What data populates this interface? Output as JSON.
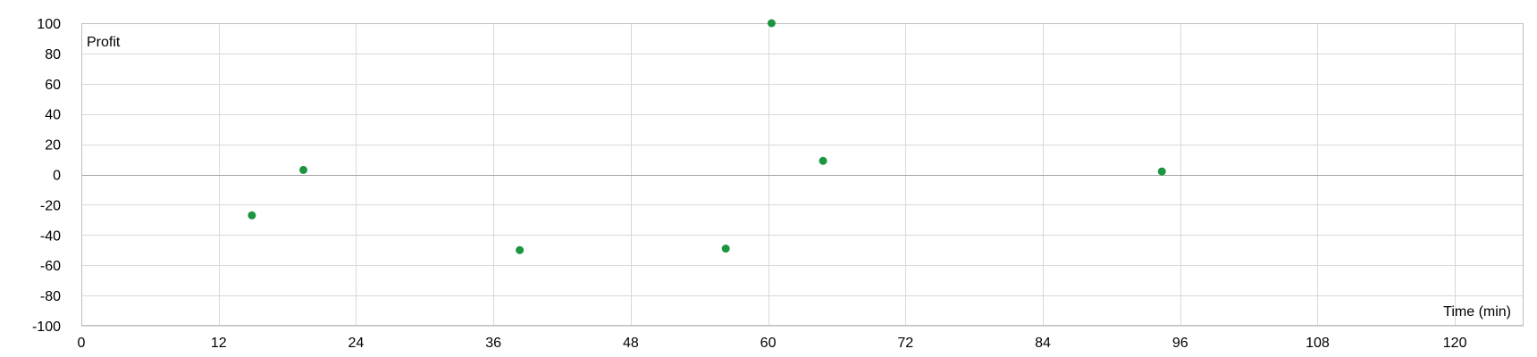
{
  "chart_data": {
    "type": "scatter",
    "title": "",
    "xlabel": "Time (min)",
    "ylabel": "Profit",
    "xlim": [
      0,
      126
    ],
    "ylim": [
      -100,
      100
    ],
    "x_ticks": [
      0,
      12,
      24,
      36,
      48,
      60,
      72,
      84,
      96,
      108,
      120
    ],
    "y_ticks": [
      100,
      80,
      60,
      40,
      20,
      0,
      -20,
      -40,
      -60,
      -80,
      -100
    ],
    "grid": true,
    "legend": "none",
    "marker_color": "#1a9641",
    "series": [
      {
        "points": [
          {
            "x": 14.9,
            "y": -27
          },
          {
            "x": 19.4,
            "y": 3
          },
          {
            "x": 38.3,
            "y": -50
          },
          {
            "x": 56.3,
            "y": -49
          },
          {
            "x": 60.3,
            "y": 100
          },
          {
            "x": 64.8,
            "y": 9
          },
          {
            "x": 94.4,
            "y": 2
          }
        ]
      }
    ]
  }
}
